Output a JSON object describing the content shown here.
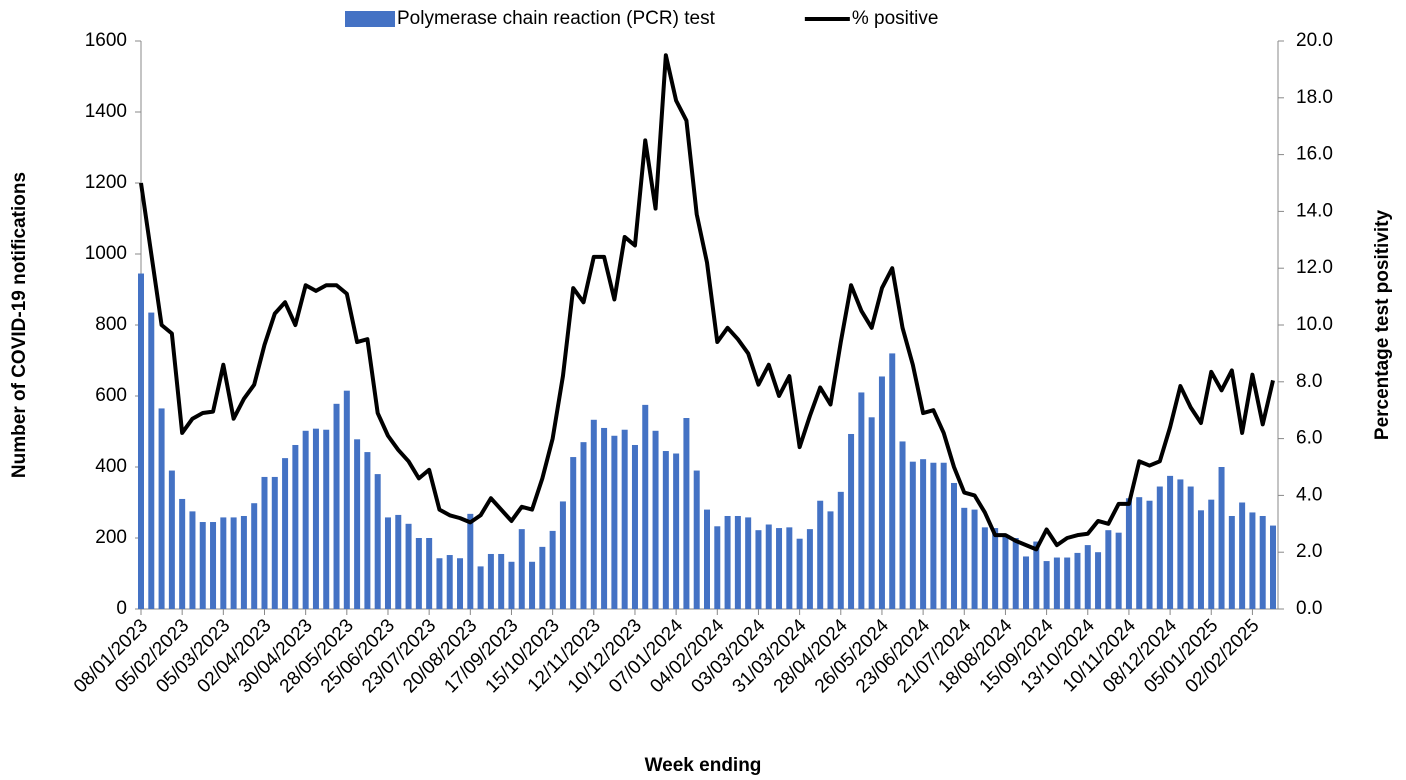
{
  "chart_data": {
    "type": "bar",
    "xlabel": "Week ending",
    "ylabel": "Number of COVID-19 notifications",
    "y2label": "Percentage test positivity",
    "categories": [
      "08/01/2023",
      null,
      null,
      null,
      "05/02/2023",
      null,
      null,
      null,
      "05/03/2023",
      null,
      null,
      null,
      "02/04/2023",
      null,
      null,
      null,
      "30/04/2023",
      null,
      null,
      null,
      "28/05/2023",
      null,
      null,
      null,
      "25/06/2023",
      null,
      null,
      null,
      "23/07/2023",
      null,
      null,
      null,
      "20/08/2023",
      null,
      null,
      null,
      "17/09/2023",
      null,
      null,
      null,
      "15/10/2023",
      null,
      null,
      null,
      "12/11/2023",
      null,
      null,
      null,
      "10/12/2023",
      null,
      null,
      null,
      "07/01/2024",
      null,
      null,
      null,
      "04/02/2024",
      null,
      null,
      null,
      "03/03/2024",
      null,
      null,
      null,
      "31/03/2024",
      null,
      null,
      null,
      "28/04/2024",
      null,
      null,
      null,
      "26/05/2024",
      null,
      null,
      null,
      "23/06/2024",
      null,
      null,
      null,
      "21/07/2024",
      null,
      null,
      null,
      "18/08/2024",
      null,
      null,
      null,
      "15/09/2024",
      null,
      null,
      null,
      "13/10/2024",
      null,
      null,
      null,
      "10/11/2024",
      null,
      null,
      null,
      "08/12/2024",
      null,
      null,
      null,
      "05/01/2025",
      null,
      null,
      null,
      "02/02/2025",
      null,
      null
    ],
    "series": [
      {
        "name": "Polymerase chain reaction (PCR) test",
        "type": "bar",
        "color": "#4472c4",
        "values": [
          945,
          835,
          565,
          390,
          310,
          275,
          245,
          245,
          258,
          258,
          262,
          298,
          372,
          372,
          425,
          462,
          502,
          508,
          505,
          578,
          615,
          478,
          442,
          380,
          258,
          265,
          240,
          200,
          200,
          143,
          152,
          143,
          268,
          120,
          155,
          155,
          133,
          225,
          133,
          175,
          220,
          303,
          428,
          470,
          533,
          510,
          488,
          505,
          462,
          575,
          502,
          445,
          438,
          538,
          390,
          280,
          233,
          262,
          262,
          258,
          222,
          238,
          228,
          230,
          198,
          225,
          305,
          275,
          330,
          493,
          610,
          540,
          655,
          720,
          472,
          415,
          422,
          412,
          412,
          355,
          285,
          280,
          230,
          228,
          210,
          200,
          148,
          190,
          135,
          145,
          145,
          158,
          180,
          160,
          222,
          215,
          312,
          315,
          305,
          345,
          375,
          365,
          345,
          278,
          308,
          400,
          262,
          300,
          272,
          262,
          235
        ]
      },
      {
        "name": "% positive",
        "type": "line",
        "axis": "y2",
        "color": "#000000",
        "values": [
          15.0,
          12.5,
          10.0,
          9.7,
          6.2,
          6.7,
          6.9,
          6.95,
          8.6,
          6.7,
          7.4,
          7.9,
          9.3,
          10.4,
          10.8,
          10.0,
          11.4,
          11.2,
          11.4,
          11.4,
          11.1,
          9.4,
          9.5,
          6.9,
          6.1,
          5.6,
          5.2,
          4.6,
          4.9,
          3.5,
          3.3,
          3.2,
          3.05,
          3.3,
          3.9,
          3.5,
          3.1,
          3.6,
          3.5,
          4.6,
          6.0,
          8.2,
          11.3,
          10.8,
          12.4,
          12.4,
          10.9,
          13.1,
          12.8,
          16.5,
          14.1,
          19.5,
          17.9,
          17.2,
          13.9,
          12.2,
          9.4,
          9.9,
          9.5,
          9.0,
          7.9,
          8.6,
          7.5,
          8.2,
          5.7,
          6.8,
          7.8,
          7.2,
          9.4,
          11.4,
          10.5,
          9.9,
          11.3,
          12.0,
          9.9,
          8.6,
          6.9,
          7.0,
          6.2,
          5.0,
          4.1,
          4.0,
          3.4,
          2.6,
          2.6,
          2.4,
          2.25,
          2.1,
          2.8,
          2.25,
          2.5,
          2.6,
          2.65,
          3.1,
          3.0,
          3.7,
          3.7,
          5.2,
          5.05,
          5.2,
          6.4,
          7.85,
          7.1,
          6.55,
          8.35,
          7.7,
          8.4,
          6.2,
          8.25,
          6.5,
          8.05
        ]
      }
    ],
    "ylim": [
      0,
      1600
    ],
    "yticks": [
      0,
      200,
      400,
      600,
      800,
      1000,
      1200,
      1400,
      1600
    ],
    "y2lim": [
      0,
      20
    ],
    "y2ticks": [
      {
        "value": 0,
        "label": "0.0"
      },
      {
        "value": 2,
        "label": "2.0"
      },
      {
        "value": 4,
        "label": "4.0"
      },
      {
        "value": 6,
        "label": "6.0"
      },
      {
        "value": 8,
        "label": "8.0"
      },
      {
        "value": 10,
        "label": "10.0"
      },
      {
        "value": 12,
        "label": "12.0"
      },
      {
        "value": 14,
        "label": "14.0"
      },
      {
        "value": 16,
        "label": "16.0"
      },
      {
        "value": 18,
        "label": "18.0"
      },
      {
        "value": 20,
        "label": "20.0"
      }
    ],
    "grid": false,
    "legend": "top"
  }
}
